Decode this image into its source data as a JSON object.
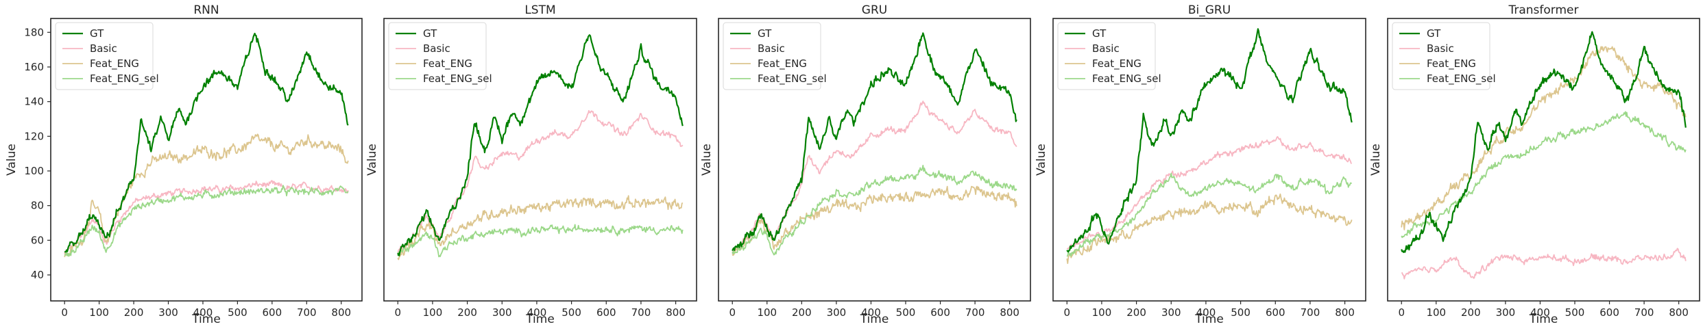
{
  "colors": {
    "GT": "#008000",
    "Basic": "#f7b6c2",
    "Feat_ENG": "#dcc58e",
    "Feat_ENG_sel": "#9bd889"
  },
  "chart_data": [
    {
      "type": "line",
      "title": "RNN",
      "xlabel": "Time",
      "ylabel": "Value",
      "xlim": [
        -40,
        860
      ],
      "ylim": [
        25,
        188
      ],
      "xticks": [
        0,
        100,
        200,
        300,
        400,
        500,
        600,
        700,
        800
      ],
      "yticks": [
        40,
        60,
        80,
        100,
        120,
        140,
        160,
        180
      ],
      "legend": "top-left",
      "series": [
        {
          "name": "GT",
          "x": [
            0,
            50,
            80,
            100,
            120,
            150,
            200,
            220,
            250,
            280,
            300,
            330,
            350,
            400,
            450,
            500,
            550,
            580,
            600,
            650,
            700,
            750,
            800,
            820
          ],
          "values": [
            53,
            63,
            75,
            68,
            60,
            75,
            95,
            130,
            112,
            130,
            118,
            135,
            128,
            150,
            158,
            148,
            180,
            160,
            155,
            140,
            170,
            150,
            145,
            128
          ]
        },
        {
          "name": "Basic",
          "x": [
            0,
            50,
            80,
            100,
            120,
            150,
            200,
            250,
            300,
            350,
            400,
            450,
            500,
            550,
            600,
            650,
            700,
            750,
            800,
            820
          ],
          "values": [
            52,
            62,
            72,
            68,
            58,
            70,
            82,
            85,
            87,
            88,
            90,
            89,
            90,
            92,
            92,
            90,
            91,
            90,
            90,
            88
          ]
        },
        {
          "name": "Feat_ENG",
          "x": [
            0,
            50,
            80,
            100,
            120,
            150,
            200,
            250,
            300,
            350,
            400,
            450,
            500,
            550,
            600,
            650,
            700,
            750,
            800,
            820
          ],
          "values": [
            51,
            60,
            80,
            75,
            58,
            75,
            95,
            105,
            108,
            108,
            112,
            110,
            112,
            118,
            115,
            112,
            118,
            115,
            112,
            105
          ]
        },
        {
          "name": "Feat_ENG_sel",
          "x": [
            0,
            50,
            80,
            100,
            120,
            150,
            200,
            250,
            300,
            350,
            400,
            450,
            500,
            550,
            600,
            650,
            700,
            750,
            800,
            820
          ],
          "values": [
            51,
            58,
            68,
            64,
            54,
            66,
            78,
            82,
            84,
            85,
            86,
            87,
            88,
            88,
            89,
            88,
            88,
            88,
            88,
            86
          ]
        }
      ]
    },
    {
      "type": "line",
      "title": "LSTM",
      "xlabel": "Time",
      "ylabel": "Value",
      "xlim": [
        -40,
        860
      ],
      "ylim": [
        25,
        188
      ],
      "xticks": [
        0,
        100,
        200,
        300,
        400,
        500,
        600,
        700,
        800
      ],
      "yticks": [],
      "legend": "top-left",
      "series": [
        {
          "name": "GT",
          "x": [
            0,
            50,
            80,
            100,
            120,
            150,
            200,
            220,
            250,
            280,
            300,
            330,
            350,
            400,
            450,
            500,
            550,
            580,
            600,
            650,
            700,
            750,
            800,
            820
          ],
          "values": [
            53,
            63,
            75,
            68,
            60,
            75,
            95,
            130,
            112,
            130,
            118,
            135,
            128,
            150,
            158,
            148,
            180,
            160,
            155,
            140,
            170,
            150,
            145,
            128
          ]
        },
        {
          "name": "Basic",
          "x": [
            0,
            50,
            80,
            100,
            120,
            150,
            200,
            220,
            250,
            300,
            350,
            400,
            450,
            500,
            550,
            580,
            600,
            650,
            700,
            750,
            800,
            820
          ],
          "values": [
            53,
            63,
            75,
            68,
            60,
            74,
            92,
            108,
            100,
            110,
            108,
            118,
            122,
            120,
            135,
            130,
            128,
            120,
            132,
            122,
            120,
            113
          ]
        },
        {
          "name": "Feat_ENG",
          "x": [
            0,
            50,
            80,
            100,
            120,
            150,
            200,
            250,
            300,
            350,
            400,
            450,
            500,
            550,
            600,
            650,
            700,
            750,
            800,
            820
          ],
          "values": [
            52,
            60,
            68,
            66,
            56,
            64,
            70,
            74,
            77,
            78,
            79,
            80,
            81,
            82,
            82,
            81,
            82,
            81,
            81,
            80
          ]
        },
        {
          "name": "Feat_ENG_sel",
          "x": [
            0,
            50,
            80,
            100,
            120,
            150,
            200,
            250,
            300,
            350,
            400,
            450,
            500,
            550,
            600,
            650,
            700,
            750,
            800,
            820
          ],
          "values": [
            52,
            58,
            63,
            62,
            52,
            58,
            62,
            64,
            65,
            65,
            66,
            66,
            66,
            67,
            67,
            66,
            67,
            66,
            66,
            65
          ]
        }
      ]
    },
    {
      "type": "line",
      "title": "GRU",
      "xlabel": "Time",
      "ylabel": "Value",
      "xlim": [
        -40,
        860
      ],
      "ylim": [
        25,
        188
      ],
      "xticks": [
        0,
        100,
        200,
        300,
        400,
        500,
        600,
        700,
        800
      ],
      "yticks": [],
      "legend": "top-left",
      "series": [
        {
          "name": "GT",
          "x": [
            0,
            50,
            80,
            100,
            120,
            150,
            200,
            220,
            250,
            280,
            300,
            330,
            350,
            400,
            450,
            500,
            550,
            580,
            600,
            650,
            700,
            750,
            800,
            820
          ],
          "values": [
            53,
            63,
            75,
            68,
            60,
            75,
            95,
            130,
            112,
            130,
            118,
            135,
            128,
            150,
            158,
            148,
            180,
            160,
            155,
            140,
            170,
            150,
            145,
            128
          ]
        },
        {
          "name": "Basic",
          "x": [
            0,
            50,
            80,
            100,
            120,
            150,
            200,
            220,
            250,
            300,
            350,
            400,
            450,
            500,
            550,
            580,
            600,
            650,
            700,
            750,
            800,
            820
          ],
          "values": [
            53,
            63,
            75,
            68,
            60,
            74,
            92,
            110,
            100,
            112,
            108,
            120,
            124,
            122,
            140,
            132,
            130,
            122,
            134,
            124,
            122,
            114
          ]
        },
        {
          "name": "Feat_ENG",
          "x": [
            0,
            50,
            80,
            100,
            120,
            150,
            200,
            250,
            300,
            350,
            400,
            450,
            500,
            550,
            600,
            650,
            700,
            750,
            800,
            820
          ],
          "values": [
            52,
            60,
            70,
            66,
            56,
            64,
            72,
            76,
            80,
            78,
            84,
            86,
            84,
            88,
            88,
            84,
            90,
            85,
            86,
            80
          ]
        },
        {
          "name": "Feat_ENG_sel",
          "x": [
            0,
            50,
            80,
            100,
            120,
            150,
            200,
            250,
            300,
            350,
            400,
            450,
            500,
            550,
            600,
            650,
            700,
            750,
            800,
            820
          ],
          "values": [
            52,
            58,
            66,
            64,
            52,
            60,
            70,
            82,
            88,
            86,
            92,
            95,
            96,
            100,
            98,
            94,
            98,
            92,
            92,
            88
          ]
        }
      ]
    },
    {
      "type": "line",
      "title": "Bi_GRU",
      "xlabel": "Time",
      "ylabel": "Value",
      "xlim": [
        -40,
        860
      ],
      "ylim": [
        25,
        188
      ],
      "xticks": [
        0,
        100,
        200,
        300,
        400,
        500,
        600,
        700,
        800
      ],
      "yticks": [],
      "legend": "top-left",
      "series": [
        {
          "name": "GT",
          "x": [
            0,
            50,
            80,
            100,
            120,
            150,
            200,
            220,
            250,
            280,
            300,
            330,
            350,
            400,
            450,
            500,
            550,
            580,
            600,
            650,
            700,
            750,
            800,
            820
          ],
          "values": [
            53,
            63,
            75,
            68,
            60,
            75,
            95,
            130,
            112,
            130,
            118,
            135,
            128,
            150,
            158,
            148,
            180,
            160,
            155,
            140,
            170,
            150,
            145,
            128
          ]
        },
        {
          "name": "Basic",
          "x": [
            0,
            50,
            100,
            150,
            200,
            250,
            300,
            350,
            400,
            450,
            500,
            550,
            600,
            650,
            700,
            750,
            800,
            820
          ],
          "values": [
            55,
            62,
            64,
            70,
            80,
            92,
            98,
            100,
            105,
            110,
            112,
            115,
            118,
            112,
            115,
            110,
            108,
            105
          ]
        },
        {
          "name": "Feat_ENG",
          "x": [
            0,
            50,
            100,
            150,
            200,
            250,
            300,
            350,
            400,
            450,
            500,
            550,
            600,
            650,
            700,
            750,
            800,
            820
          ],
          "values": [
            50,
            55,
            60,
            62,
            66,
            72,
            76,
            75,
            80,
            78,
            82,
            76,
            86,
            80,
            78,
            74,
            72,
            70
          ]
        },
        {
          "name": "Feat_ENG_sel",
          "x": [
            0,
            50,
            100,
            150,
            200,
            250,
            300,
            350,
            400,
            450,
            500,
            550,
            600,
            650,
            700,
            750,
            800,
            820
          ],
          "values": [
            52,
            58,
            62,
            66,
            74,
            88,
            96,
            86,
            90,
            94,
            92,
            88,
            98,
            90,
            96,
            88,
            95,
            92
          ]
        }
      ]
    },
    {
      "type": "line",
      "title": "Transformer",
      "xlabel": "Time",
      "ylabel": "Value",
      "xlim": [
        -40,
        860
      ],
      "ylim": [
        25,
        188
      ],
      "xticks": [
        0,
        100,
        200,
        300,
        400,
        500,
        600,
        700,
        800
      ],
      "yticks": [],
      "legend": "top-left",
      "series": [
        {
          "name": "GT",
          "x": [
            0,
            50,
            80,
            100,
            120,
            150,
            200,
            220,
            250,
            280,
            300,
            330,
            350,
            400,
            450,
            500,
            550,
            580,
            600,
            650,
            700,
            750,
            800,
            820
          ],
          "values": [
            53,
            63,
            75,
            68,
            60,
            75,
            95,
            130,
            112,
            130,
            118,
            135,
            128,
            150,
            158,
            148,
            180,
            160,
            155,
            140,
            170,
            150,
            145,
            128
          ]
        },
        {
          "name": "Basic",
          "x": [
            0,
            50,
            100,
            150,
            200,
            250,
            300,
            350,
            400,
            450,
            500,
            550,
            600,
            650,
            700,
            750,
            800,
            820
          ],
          "values": [
            40,
            42,
            44,
            50,
            38,
            46,
            52,
            48,
            50,
            50,
            48,
            50,
            50,
            48,
            50,
            50,
            52,
            50
          ]
        },
        {
          "name": "Feat_ENG",
          "x": [
            0,
            50,
            100,
            150,
            200,
            250,
            300,
            350,
            400,
            450,
            500,
            550,
            600,
            650,
            700,
            750,
            800,
            820
          ],
          "values": [
            68,
            74,
            80,
            92,
            98,
            112,
            122,
            128,
            138,
            148,
            152,
            168,
            172,
            160,
            150,
            148,
            138,
            130
          ]
        },
        {
          "name": "Feat_ENG_sel",
          "x": [
            0,
            50,
            100,
            150,
            200,
            250,
            300,
            350,
            400,
            450,
            500,
            550,
            600,
            650,
            700,
            750,
            800,
            820
          ],
          "values": [
            62,
            70,
            72,
            80,
            88,
            100,
            108,
            110,
            115,
            120,
            122,
            125,
            130,
            132,
            126,
            120,
            112,
            110
          ]
        }
      ]
    }
  ]
}
